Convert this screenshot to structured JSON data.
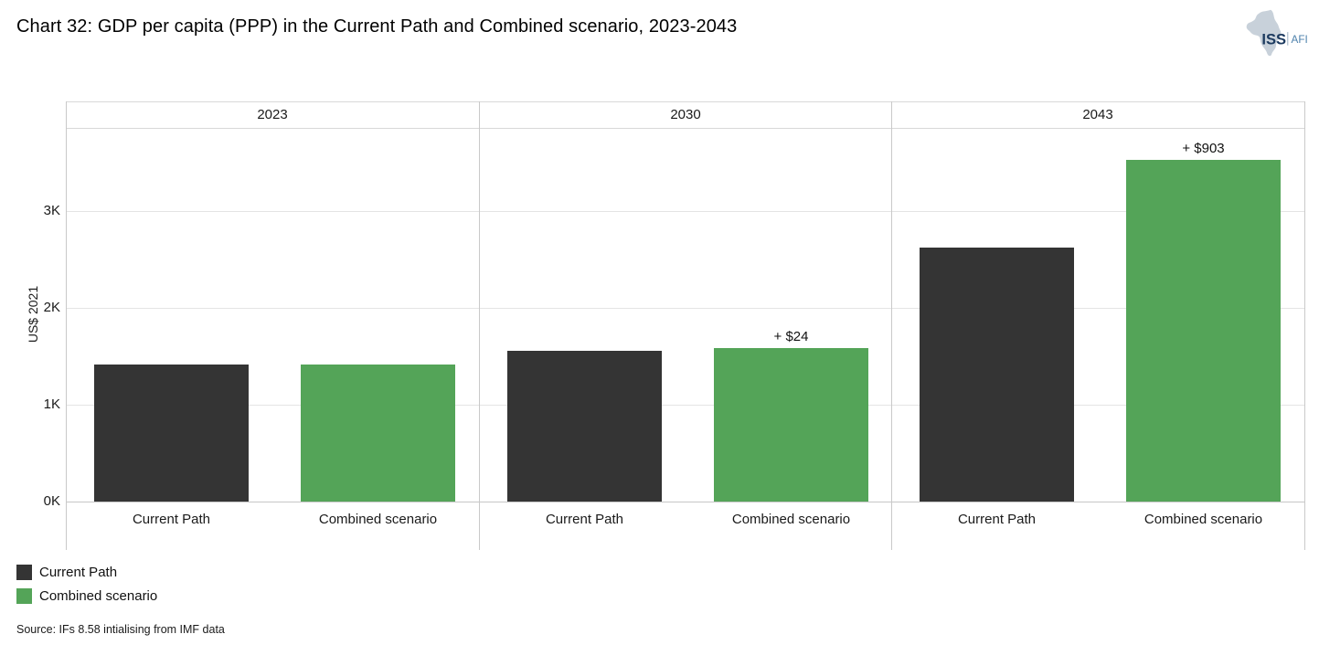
{
  "title": "Chart 32: GDP per capita (PPP) in the Current Path and Combined scenario, 2023-2043",
  "logo": {
    "iss": "ISS",
    "afi": "AFI",
    "iss_color": "#1c3a5f",
    "afi_color": "#4e82ac",
    "map_color": "#c8d1da"
  },
  "legend": [
    {
      "label": "Current Path",
      "color": "#343434"
    },
    {
      "label": "Combined scenario",
      "color": "#54a458"
    }
  ],
  "source": "Source: IFs 8.58 intialising from IMF data",
  "chart_data": {
    "type": "bar",
    "panels": [
      "2023",
      "2030",
      "2043"
    ],
    "categories": [
      "Current Path",
      "Combined scenario"
    ],
    "series": [
      {
        "name": "Current Path",
        "color": "#343434",
        "values": [
          1415,
          1557,
          2623
        ]
      },
      {
        "name": "Combined scenario",
        "color": "#54a458",
        "values": [
          1415,
          1581,
          3526
        ]
      }
    ],
    "annotations": [
      "",
      "+ $24",
      "+ $903"
    ],
    "title": "Chart 32: GDP per capita (PPP) in the Current Path and Combined scenario, 2023-2043",
    "xlabel": "",
    "ylabel": "US$ 2021",
    "yticks": [
      {
        "value": 0,
        "label": "0K"
      },
      {
        "value": 1000,
        "label": "1K"
      },
      {
        "value": 2000,
        "label": "2K"
      },
      {
        "value": 3000,
        "label": "3K"
      }
    ],
    "ylim": [
      0,
      3860
    ],
    "grid": true,
    "legend_position": "bottom-left"
  }
}
